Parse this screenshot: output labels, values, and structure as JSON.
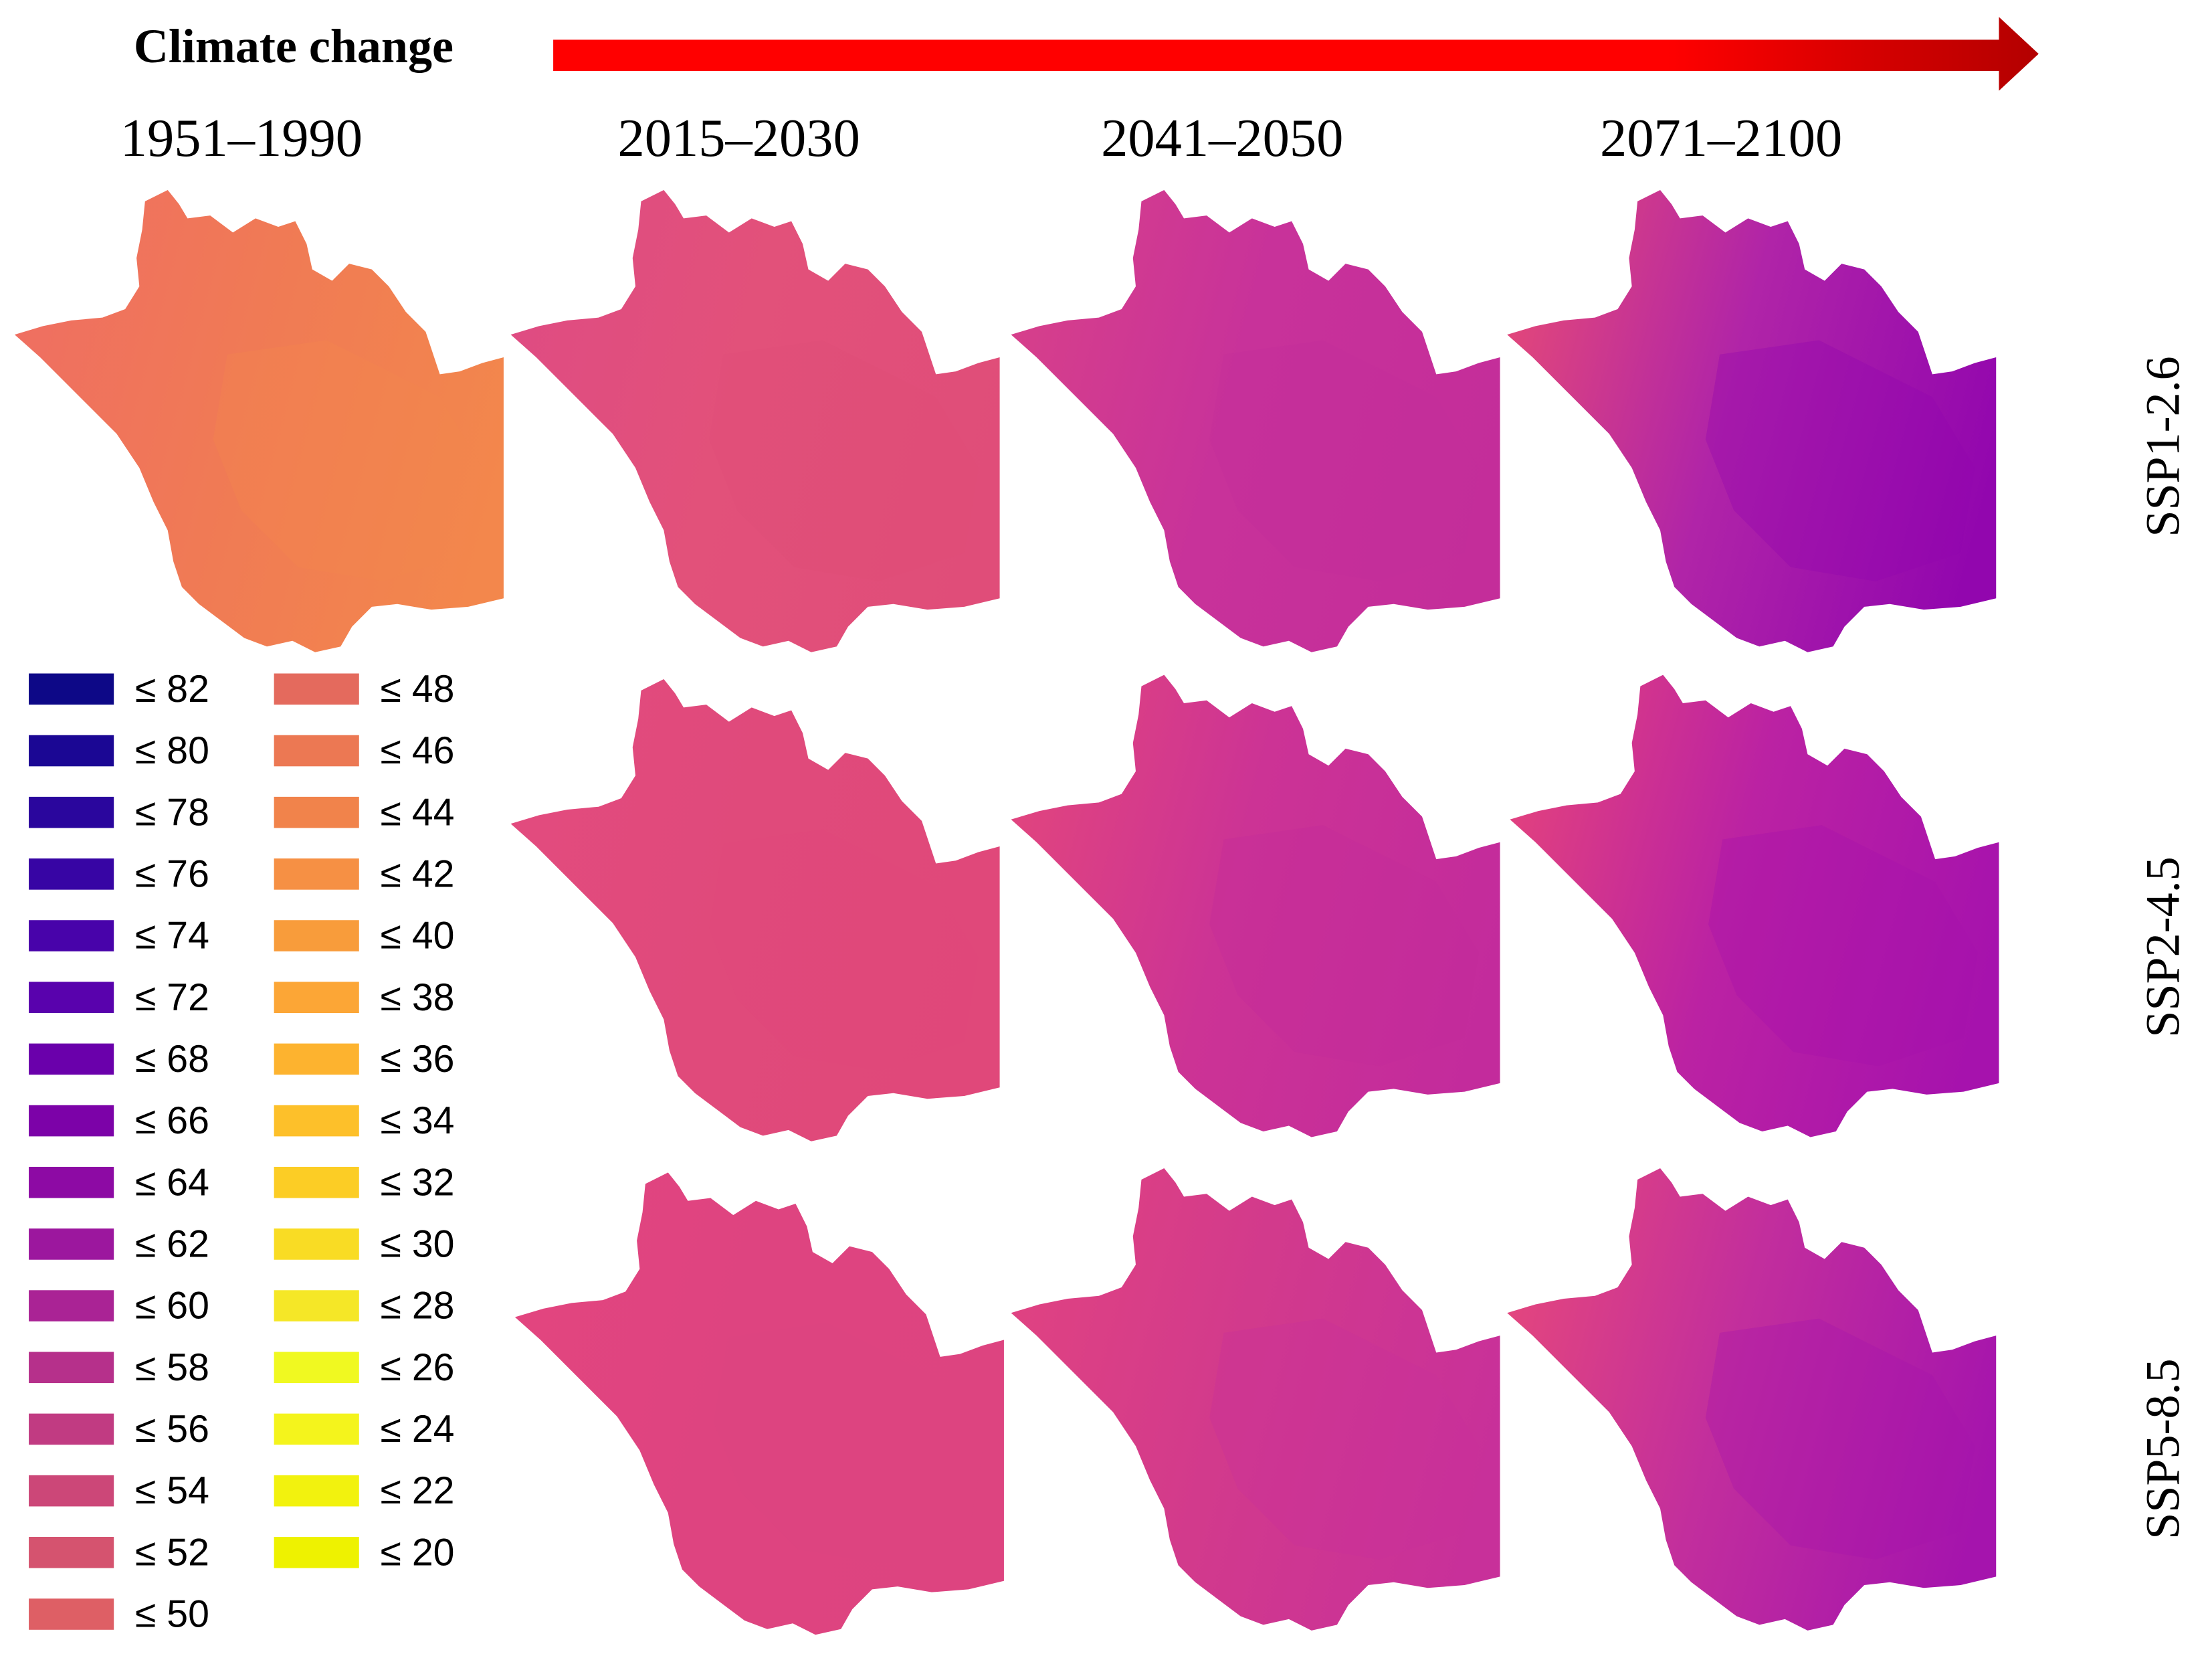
{
  "header": {
    "title": "Climate change"
  },
  "periods": [
    "1951–1990",
    "2015–2030",
    "2041–2050",
    "2071–2100"
  ],
  "scenarios": [
    "SSP1-2.6",
    "SSP2-4.5",
    "SSP5-8.5"
  ],
  "colors": {
    "arrow_start": "#ff0000",
    "arrow_end": "#b30000"
  },
  "legend": [
    {
      "label": "≤ 82",
      "color": "#0d0887"
    },
    {
      "label": "≤ 80",
      "color": "#1b0794"
    },
    {
      "label": "≤ 78",
      "color": "#2a069d"
    },
    {
      "label": "≤ 76",
      "color": "#3705a4"
    },
    {
      "label": "≤ 74",
      "color": "#4803aa"
    },
    {
      "label": "≤ 72",
      "color": "#5902ad"
    },
    {
      "label": "≤ 68",
      "color": "#6a00ab"
    },
    {
      "label": "≤ 66",
      "color": "#7c02a8"
    },
    {
      "label": "≤ 64",
      "color": "#8d0aa4"
    },
    {
      "label": "≤ 62",
      "color": "#9c179e"
    },
    {
      "label": "≤ 60",
      "color": "#aa2395"
    },
    {
      "label": "≤ 58",
      "color": "#b6308b"
    },
    {
      "label": "≤ 56",
      "color": "#c13b82"
    },
    {
      "label": "≤ 54",
      "color": "#cc4778"
    },
    {
      "label": "≤ 52",
      "color": "#d5536f"
    },
    {
      "label": "≤ 50",
      "color": "#de5f65"
    },
    {
      "label": "≤ 48",
      "color": "#e46a5d"
    },
    {
      "label": "≤ 46",
      "color": "#ec7853"
    },
    {
      "label": "≤ 44",
      "color": "#f1834b"
    },
    {
      "label": "≤ 42",
      "color": "#f69044"
    },
    {
      "label": "≤ 40",
      "color": "#f89c3b"
    },
    {
      "label": "≤ 38",
      "color": "#fca636"
    },
    {
      "label": "≤ 36",
      "color": "#fdb32f"
    },
    {
      "label": "≤ 34",
      "color": "#fdc02a"
    },
    {
      "label": "≤ 32",
      "color": "#fccd25"
    },
    {
      "label": "≤ 30",
      "color": "#f9dc24"
    },
    {
      "label": "≤ 28",
      "color": "#f5e727"
    },
    {
      "label": "≤ 26",
      "color": "#f0f921"
    },
    {
      "label": "≤ 24",
      "color": "#f4f41c"
    },
    {
      "label": "≤ 22",
      "color": "#f2f20e"
    },
    {
      "label": "≤ 20",
      "color": "#eef200"
    }
  ],
  "maps": [
    {
      "period": "1951–1990",
      "scenario": "SSP1-2.6",
      "west": "#ef6f61",
      "center": "#f07a55",
      "east": "#f3874c"
    },
    {
      "period": "2015–2030",
      "scenario": "SSP1-2.6",
      "west": "#df4c82",
      "center": "#e2517a",
      "east": "#e04d79"
    },
    {
      "period": "2041–2050",
      "scenario": "SSP1-2.6",
      "west": "#d63f8b",
      "center": "#c8329a",
      "east": "#c42d9a"
    },
    {
      "period": "2071–2100",
      "scenario": "SSP1-2.6",
      "west": "#e0467c",
      "center": "#b024a8",
      "east": "#9206ae"
    },
    {
      "period": "2015–2030",
      "scenario": "SSP2-4.5",
      "west": "#e24b7e",
      "center": "#e04a7b",
      "east": "#e0487a"
    },
    {
      "period": "2041–2050",
      "scenario": "SSP2-4.5",
      "west": "#e0447f",
      "center": "#cc3395",
      "east": "#c32b9c"
    },
    {
      "period": "2071–2100",
      "scenario": "SSP2-4.5",
      "west": "#e04080",
      "center": "#bb22a3",
      "east": "#a612ad"
    },
    {
      "period": "2015–2030",
      "scenario": "SSP5-8.5",
      "west": "#e2457f",
      "center": "#de4480",
      "east": "#dd4480"
    },
    {
      "period": "2041–2050",
      "scenario": "SSP5-8.5",
      "west": "#df4282",
      "center": "#d23a8c",
      "east": "#c8309a"
    },
    {
      "period": "2071–2100",
      "scenario": "SSP5-8.5",
      "west": "#e2457f",
      "center": "#c22e9d",
      "east": "#a514ad"
    }
  ]
}
